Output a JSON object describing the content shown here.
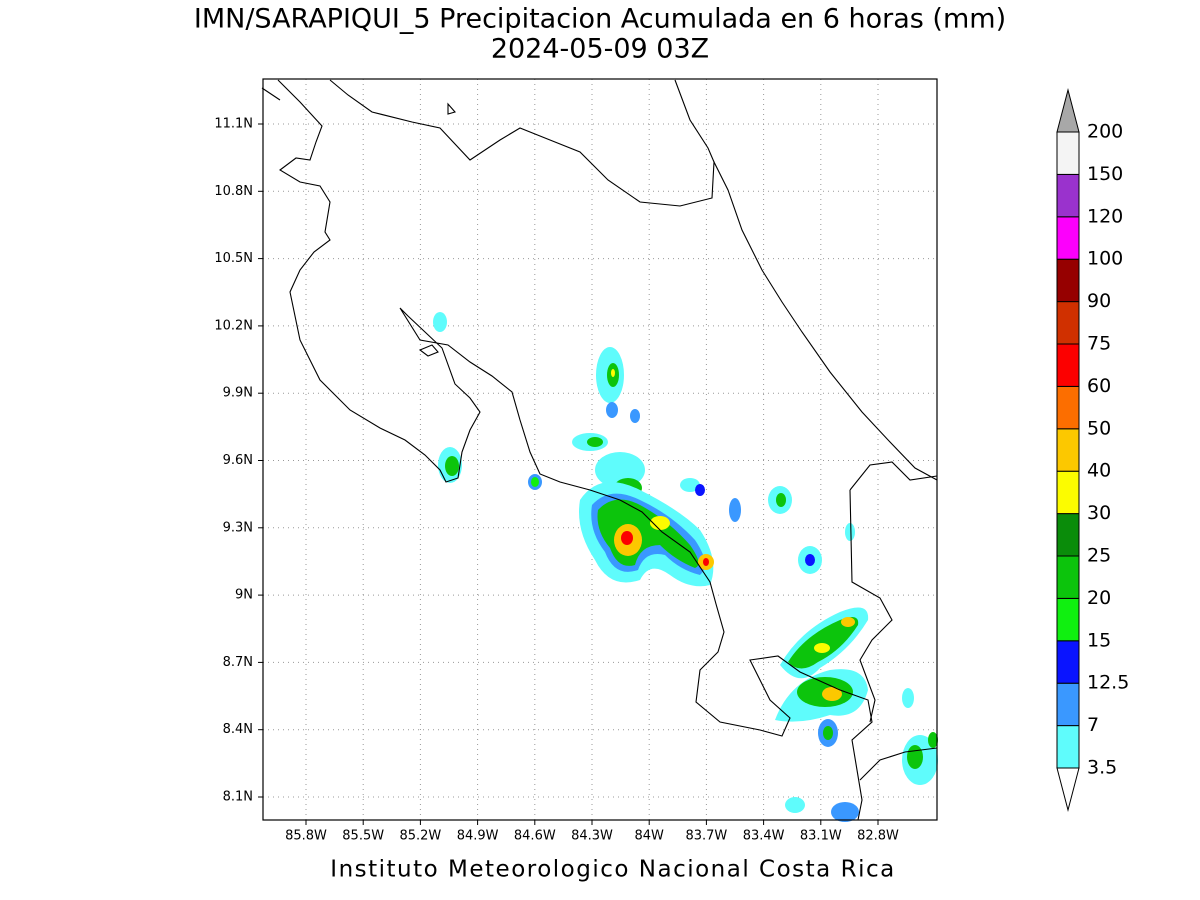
{
  "map": {
    "title": "IMN/SARAPIQUI_5 Precipitacion Acumulada en 6 horas (mm)",
    "subtitle": "2024-05-09 03Z",
    "footer": "Instituto Meteorologico Nacional Costa Rica",
    "lon_labels": [
      "85.8W",
      "85.5W",
      "85.2W",
      "84.9W",
      "84.6W",
      "84.3W",
      "84W",
      "83.7W",
      "83.4W",
      "83.1W",
      "82.8W"
    ],
    "lat_labels": [
      "8.1N",
      "8.4N",
      "8.7N",
      "9N",
      "9.3N",
      "9.6N",
      "9.9N",
      "10.2N",
      "10.5N",
      "10.8N",
      "11.1N"
    ],
    "colorbar": {
      "levels": [
        3.5,
        7,
        12.5,
        15,
        20,
        25,
        30,
        40,
        50,
        60,
        75,
        90,
        100,
        120,
        150,
        200
      ],
      "colors": [
        "#5ffcfc",
        "#3a98ff",
        "#0a14ff",
        "#10f010",
        "#0cc40c",
        "#0a8c0a",
        "#fcfc00",
        "#fcc800",
        "#fc6e00",
        "#fc0000",
        "#d03000",
        "#960000",
        "#fc00fc",
        "#9a32cd",
        "#f4f4f4"
      ],
      "below_color": "#ffffff",
      "above_color": "#a8a8a8"
    }
  }
}
